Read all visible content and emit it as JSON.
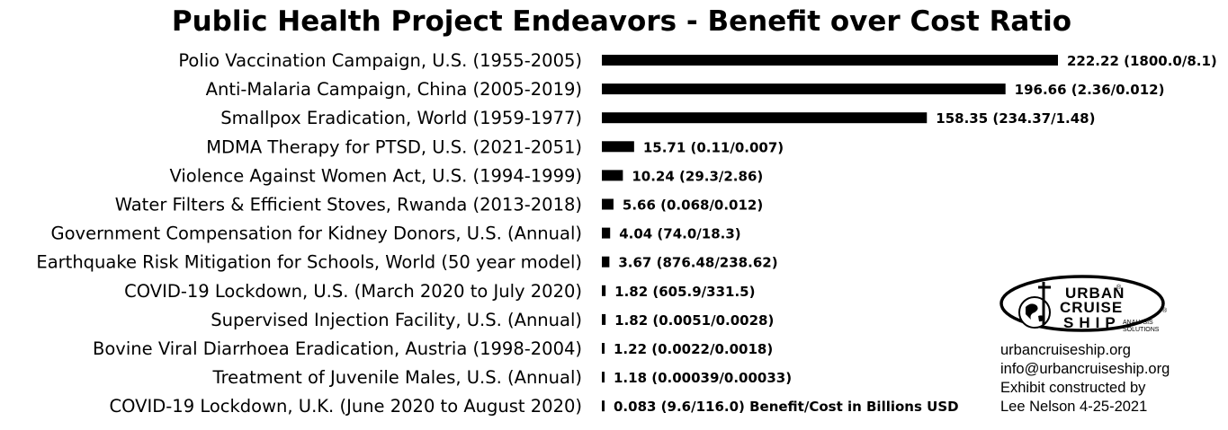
{
  "chart_data": {
    "type": "bar",
    "orientation": "horizontal",
    "title": "Public Health Project Endeavors - Benefit over Cost Ratio",
    "categories": [
      "Polio Vaccination Campaign, U.S. (1955-2005)",
      "Anti-Malaria Campaign, China (2005-2019)",
      "Smallpox Eradication, World (1959-1977)",
      "MDMA Therapy for PTSD, U.S. (2021-2051)",
      "Violence Against Women Act, U.S. (1994-1999)",
      "Water Filters & Efficient Stoves, Rwanda (2013-2018)",
      "Government Compensation for Kidney Donors, U.S. (Annual)",
      "Earthquake Risk Mitigation for Schools, World (50 year model)",
      "COVID-19 Lockdown, U.S. (March 2020 to July 2020)",
      "Supervised Injection Facility, U.S. (Annual)",
      "Bovine Viral Diarrhoea Eradication, Austria (1998-2004)",
      "Treatment of Juvenile Males, U.S. (Annual)",
      "COVID-19 Lockdown, U.K. (June 2020 to August 2020)"
    ],
    "values": [
      222.22,
      196.66,
      158.35,
      15.71,
      10.24,
      5.66,
      4.04,
      3.67,
      1.82,
      1.82,
      1.22,
      1.18,
      0.083
    ],
    "value_labels": [
      "222.22 (1800.0/8.1)",
      "196.66 (2.36/0.012)",
      "158.35 (234.37/1.48)",
      "15.71 (0.11/0.007)",
      "10.24 (29.3/2.86)",
      "5.66 (0.068/0.012)",
      "4.04 (74.0/18.3)",
      "3.67 (876.48/238.62)",
      "1.82 (605.9/331.5)",
      "1.82 (0.0051/0.0028)",
      "1.22 (0.0022/0.0018)",
      "1.18 (0.00039/0.00033)",
      "0.083 (9.6/116.0) Benefit/Cost in Billions USD"
    ],
    "bar_color": "#000000",
    "xlim": [
      0,
      222.22
    ],
    "grid": false,
    "legend": "none",
    "xlabel": "",
    "ylabel": ""
  },
  "logo": {
    "line1": "URBAN",
    "line2": "CRUISE",
    "line3": "SHIP",
    "tag1": "ANALYSIS",
    "tag2": "SOLUTIONS",
    "mark": "®"
  },
  "credit": {
    "website": "urbancruiseship.org",
    "email": "info@urbancruiseship.org",
    "line1": "Exhibit constructed by",
    "line2": "Lee Nelson 4-25-2021"
  }
}
